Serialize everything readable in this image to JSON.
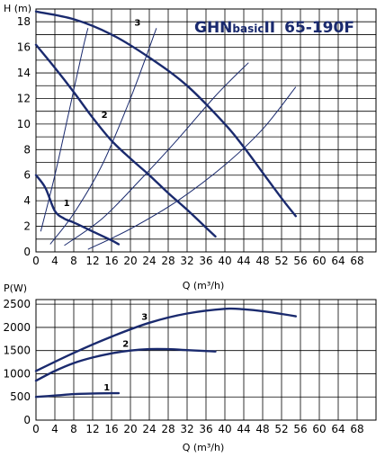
{
  "chart_data": [
    {
      "type": "line",
      "title": "GHNbasicII 65-190F",
      "title_parts": {
        "brand": "GHN",
        "sub": "basic",
        "model": "II",
        "size": "65-190F"
      },
      "ylabel": "H (m)",
      "xlabel": "Q (m³/h)",
      "xlim": [
        0,
        72
      ],
      "ylim": [
        0,
        19
      ],
      "xticks": [
        0,
        4,
        8,
        12,
        16,
        20,
        24,
        28,
        32,
        36,
        40,
        44,
        48,
        52,
        56,
        60,
        64,
        68
      ],
      "yticks": [
        0,
        2,
        4,
        6,
        8,
        10,
        12,
        14,
        16,
        18
      ],
      "grid": true,
      "series": [
        {
          "name": "1",
          "x": [
            0,
            2,
            4,
            6,
            8,
            12,
            16,
            17.5
          ],
          "y": [
            6.0,
            5.0,
            3.2,
            2.6,
            2.3,
            1.6,
            0.9,
            0.6
          ]
        },
        {
          "name": "2",
          "x": [
            0,
            4,
            8,
            12,
            16,
            20,
            24,
            28,
            32,
            36,
            38
          ],
          "y": [
            16.2,
            14.4,
            12.5,
            10.5,
            8.7,
            7.3,
            6.0,
            4.6,
            3.3,
            1.9,
            1.2
          ]
        },
        {
          "name": "3",
          "x": [
            0,
            8,
            16,
            24,
            32,
            40,
            44,
            48,
            52,
            55
          ],
          "y": [
            18.8,
            18.2,
            17.0,
            15.2,
            13.0,
            10.0,
            8.2,
            6.2,
            4.2,
            2.8
          ]
        }
      ],
      "system_curves": [
        {
          "x": [
            1,
            4,
            7,
            10,
            11
          ],
          "y": [
            1.6,
            6.0,
            11.0,
            16.0,
            17.5
          ]
        },
        {
          "x": [
            3,
            8,
            14,
            20,
            25.5
          ],
          "y": [
            0.6,
            3.0,
            6.8,
            12.0,
            17.5
          ]
        },
        {
          "x": [
            6,
            14,
            22,
            30,
            38,
            45
          ],
          "y": [
            0.5,
            2.6,
            5.6,
            8.8,
            12.2,
            14.8
          ]
        },
        {
          "x": [
            11,
            20,
            30,
            40,
            48,
            55
          ],
          "y": [
            0.2,
            1.8,
            4.0,
            6.8,
            9.6,
            12.9
          ]
        }
      ]
    },
    {
      "type": "line",
      "ylabel": "P(W)",
      "xlabel": "Q (m³/h)",
      "xlim": [
        0,
        72
      ],
      "ylim": [
        0,
        2600
      ],
      "xticks": [
        0,
        4,
        8,
        12,
        16,
        20,
        24,
        28,
        32,
        36,
        40,
        44,
        48,
        52,
        56,
        60,
        64,
        68
      ],
      "yticks": [
        0,
        500,
        1000,
        1500,
        2000,
        2500
      ],
      "grid": true,
      "series": [
        {
          "name": "1",
          "x": [
            0,
            4,
            8,
            12,
            16,
            17.5
          ],
          "y": [
            500,
            530,
            560,
            575,
            580,
            580
          ]
        },
        {
          "name": "2",
          "x": [
            0,
            4,
            8,
            12,
            16,
            20,
            24,
            28,
            32,
            36,
            38
          ],
          "y": [
            850,
            1060,
            1230,
            1350,
            1440,
            1500,
            1530,
            1530,
            1510,
            1490,
            1480
          ]
        },
        {
          "name": "3",
          "x": [
            0,
            8,
            16,
            24,
            32,
            40,
            44,
            48,
            52,
            55
          ],
          "y": [
            1060,
            1450,
            1800,
            2100,
            2300,
            2400,
            2390,
            2350,
            2290,
            2240
          ]
        }
      ]
    }
  ]
}
